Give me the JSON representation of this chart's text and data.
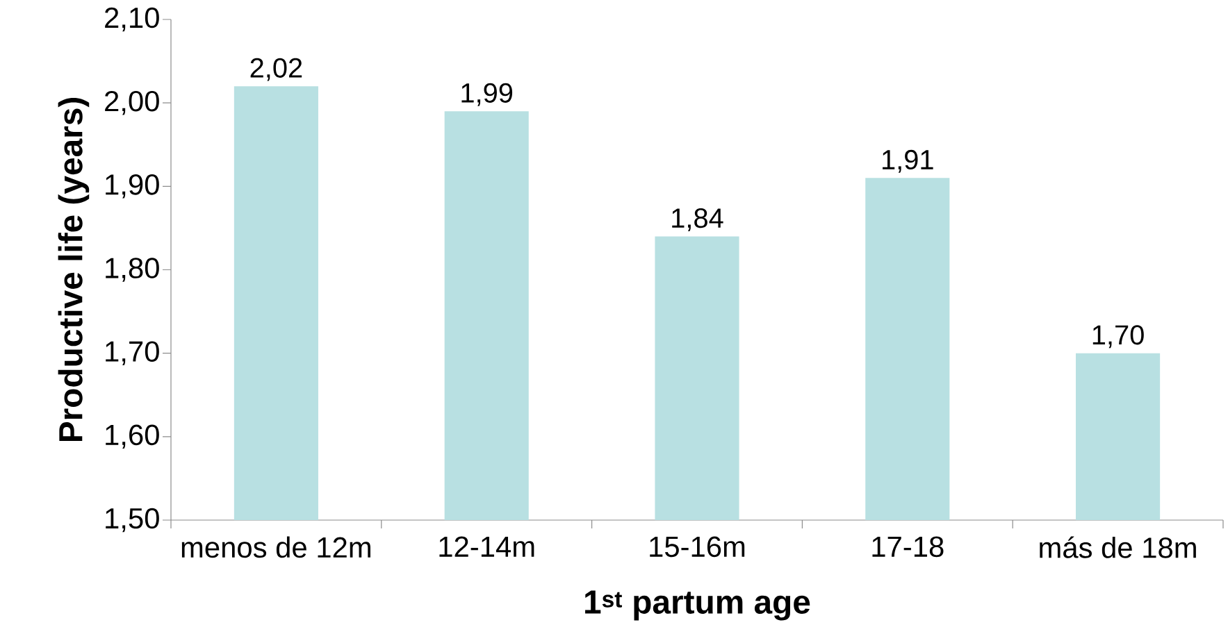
{
  "chart_data": {
    "type": "bar",
    "xlabel": "1$^{st}$ partum age",
    "ylabel": "Productive life (years)",
    "categories": [
      "menos de 12m",
      "12-14m",
      "15-16m",
      "17-18",
      "más de 18m"
    ],
    "values": [
      2.02,
      1.99,
      1.84,
      1.91,
      1.7
    ],
    "value_labels": [
      "2,02",
      "1,99",
      "1,84",
      "1,91",
      "1,70"
    ],
    "color": "#b8e0e2",
    "ylim": [
      1.5,
      2.1
    ],
    "yticks": [
      {
        "value": 1.5,
        "label": "1,50"
      },
      {
        "value": 1.6,
        "label": "1,60"
      },
      {
        "value": 1.7,
        "label": "1,70"
      },
      {
        "value": 1.8,
        "label": "1,80"
      },
      {
        "value": 1.9,
        "label": "1,90"
      },
      {
        "value": 2.0,
        "label": "2,00"
      },
      {
        "value": 2.1,
        "label": "2,10"
      }
    ],
    "grid": false
  }
}
